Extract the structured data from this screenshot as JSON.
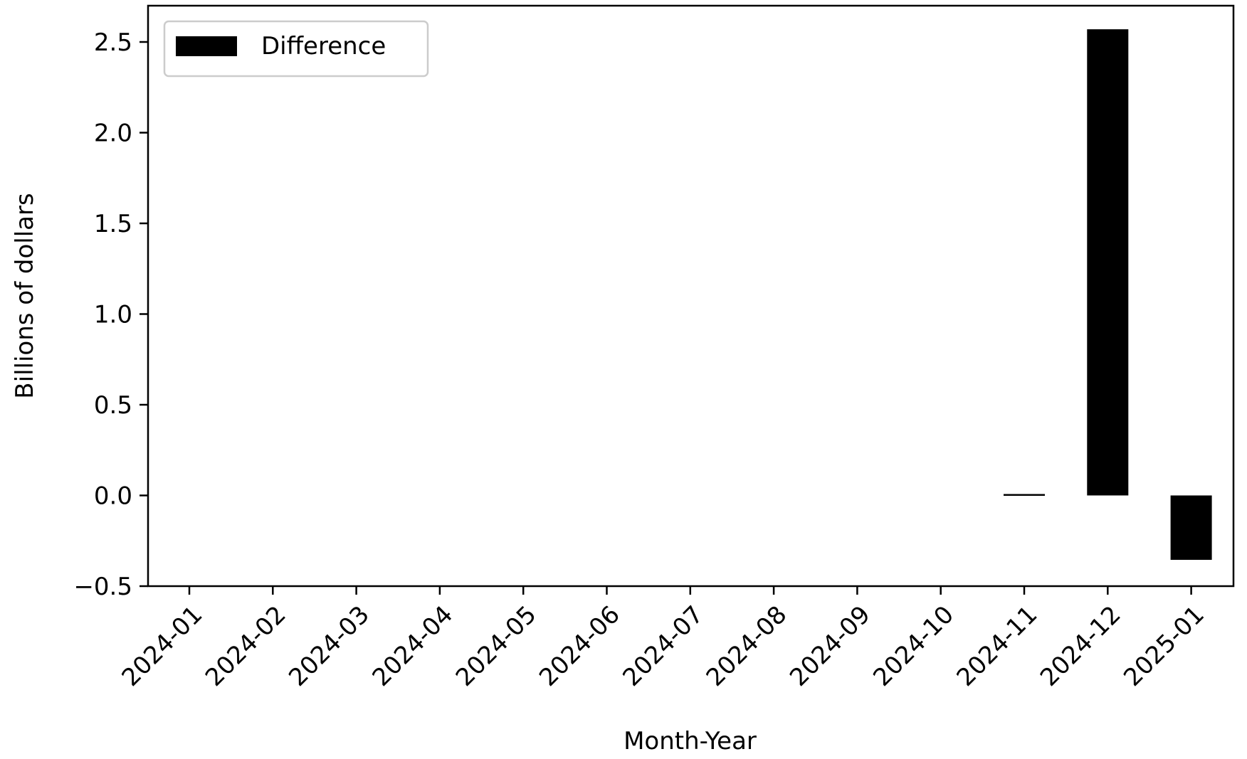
{
  "chart_data": {
    "type": "bar",
    "title": "",
    "xlabel": "Month-Year",
    "ylabel": "Billions of dollars",
    "categories": [
      "2024-01",
      "2024-02",
      "2024-03",
      "2024-04",
      "2024-05",
      "2024-06",
      "2024-07",
      "2024-08",
      "2024-09",
      "2024-10",
      "2024-11",
      "2024-12",
      "2025-01"
    ],
    "series": [
      {
        "name": "Difference",
        "color": "#000000",
        "values": [
          0,
          0,
          0,
          0,
          0,
          0,
          0,
          0,
          0,
          0,
          0.005,
          2.57,
          -0.355
        ]
      }
    ],
    "ylim": [
      -0.5,
      2.7
    ],
    "yticks": [
      -0.5,
      0.0,
      0.5,
      1.0,
      1.5,
      2.0,
      2.5
    ],
    "ytick_labels": [
      "−0.5",
      "0.0",
      "0.5",
      "1.0",
      "1.5",
      "2.0",
      "2.5"
    ],
    "grid": false,
    "legend": {
      "position": "top-left",
      "entries": [
        "Difference"
      ]
    }
  }
}
